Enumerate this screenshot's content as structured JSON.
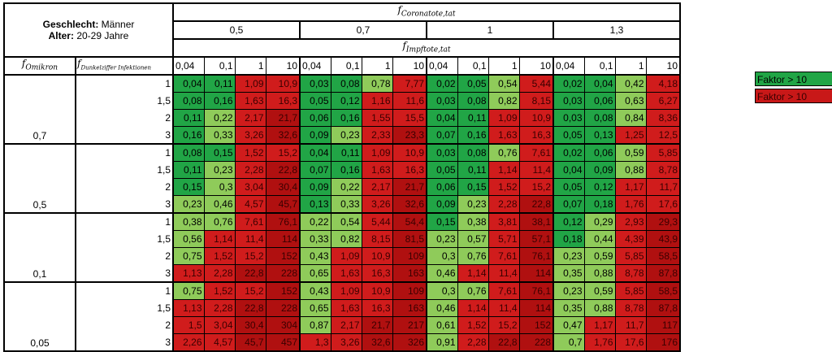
{
  "header": {
    "gender_label": "Geschlecht:",
    "gender_value": "Männer",
    "age_label": "Alter:",
    "age_value": "20-29 Jahre",
    "f_corona_main": "f",
    "f_corona_sub": "Coronatote,tat",
    "f_impf_main": "f",
    "f_impf_sub": "Impftote,tat",
    "f_omikron_main": "f",
    "f_omikron_sub": "Omikron",
    "f_dunkel_main": "f",
    "f_dunkel_sub": "Dunkelziffer Infektionen",
    "corona_values": [
      "0,5",
      "0,7",
      "1",
      "1,3"
    ],
    "impf_values": [
      "0,04",
      "0,1",
      "1",
      "10"
    ]
  },
  "row_groups": [
    {
      "omikron": "0,7",
      "rows": [
        {
          "dunkel": "1",
          "values": [
            "0,04",
            "0,11",
            "1,09",
            "10,9",
            "0,03",
            "0,08",
            "0,78",
            "7,77",
            "0,02",
            "0,05",
            "0,54",
            "5,44",
            "0,02",
            "0,04",
            "0,42",
            "4,18"
          ]
        },
        {
          "dunkel": "1,5",
          "values": [
            "0,08",
            "0,16",
            "1,63",
            "16,3",
            "0,05",
            "0,12",
            "1,16",
            "11,6",
            "0,03",
            "0,08",
            "0,82",
            "8,15",
            "0,03",
            "0,06",
            "0,63",
            "6,27"
          ]
        },
        {
          "dunkel": "2",
          "values": [
            "0,11",
            "0,22",
            "2,17",
            "21,7",
            "0,06",
            "0,16",
            "1,55",
            "15,5",
            "0,04",
            "0,11",
            "1,09",
            "10,9",
            "0,03",
            "0,08",
            "0,84",
            "8,36"
          ]
        },
        {
          "dunkel": "3",
          "values": [
            "0,16",
            "0,33",
            "3,26",
            "32,6",
            "0,09",
            "0,23",
            "2,33",
            "23,3",
            "0,07",
            "0,16",
            "1,63",
            "16,3",
            "0,05",
            "0,13",
            "1,25",
            "12,5"
          ]
        }
      ]
    },
    {
      "omikron": "0,5",
      "rows": [
        {
          "dunkel": "1",
          "values": [
            "0,08",
            "0,15",
            "1,52",
            "15,2",
            "0,04",
            "0,11",
            "1,09",
            "10,9",
            "0,03",
            "0,08",
            "0,76",
            "7,61",
            "0,02",
            "0,06",
            "0,59",
            "5,85"
          ]
        },
        {
          "dunkel": "1,5",
          "values": [
            "0,11",
            "0,23",
            "2,28",
            "22,8",
            "0,07",
            "0,16",
            "1,63",
            "16,3",
            "0,05",
            "0,11",
            "1,14",
            "11,4",
            "0,04",
            "0,09",
            "0,88",
            "8,78"
          ]
        },
        {
          "dunkel": "2",
          "values": [
            "0,15",
            "0,3",
            "3,04",
            "30,4",
            "0,09",
            "0,22",
            "2,17",
            "21,7",
            "0,06",
            "0,15",
            "1,52",
            "15,2",
            "0,05",
            "0,12",
            "1,17",
            "11,7"
          ]
        },
        {
          "dunkel": "3",
          "values": [
            "0,23",
            "0,46",
            "4,57",
            "45,7",
            "0,13",
            "0,33",
            "3,26",
            "32,6",
            "0,09",
            "0,23",
            "2,28",
            "22,8",
            "0,07",
            "0,18",
            "1,76",
            "17,6"
          ]
        }
      ]
    },
    {
      "omikron": "0,1",
      "rows": [
        {
          "dunkel": "1",
          "values": [
            "0,38",
            "0,76",
            "7,61",
            "76,1",
            "0,22",
            "0,54",
            "5,44",
            "54,4",
            "0,15",
            "0,38",
            "3,81",
            "38,1",
            "0,12",
            "0,29",
            "2,93",
            "29,3"
          ]
        },
        {
          "dunkel": "1,5",
          "values": [
            "0,56",
            "1,14",
            "11,4",
            "114",
            "0,33",
            "0,82",
            "8,15",
            "81,5",
            "0,23",
            "0,57",
            "5,71",
            "57,1",
            "0,18",
            "0,44",
            "4,39",
            "43,9"
          ]
        },
        {
          "dunkel": "2",
          "values": [
            "0,75",
            "1,52",
            "15,2",
            "152",
            "0,43",
            "1,09",
            "10,9",
            "109",
            "0,3",
            "0,76",
            "7,61",
            "76,1",
            "0,23",
            "0,59",
            "5,85",
            "58,5"
          ]
        },
        {
          "dunkel": "3",
          "values": [
            "1,13",
            "2,28",
            "22,8",
            "228",
            "0,65",
            "1,63",
            "16,3",
            "163",
            "0,46",
            "1,14",
            "11,4",
            "114",
            "0,35",
            "0,88",
            "8,78",
            "87,8"
          ]
        }
      ]
    },
    {
      "omikron": "0,05",
      "rows": [
        {
          "dunkel": "1",
          "values": [
            "0,75",
            "1,52",
            "15,2",
            "152",
            "0,43",
            "1,09",
            "10,9",
            "109",
            "0,3",
            "0,76",
            "7,61",
            "76,1",
            "0,23",
            "0,59",
            "5,85",
            "58,5"
          ]
        },
        {
          "dunkel": "1,5",
          "values": [
            "1,13",
            "2,28",
            "22,8",
            "228",
            "0,65",
            "1,63",
            "16,3",
            "163",
            "0,46",
            "1,14",
            "11,4",
            "114",
            "0,35",
            "0,88",
            "8,78",
            "87,8"
          ]
        },
        {
          "dunkel": "2",
          "values": [
            "1,5",
            "3,04",
            "30,4",
            "304",
            "0,87",
            "2,17",
            "21,7",
            "217",
            "0,61",
            "1,52",
            "15,2",
            "152",
            "0,47",
            "1,17",
            "11,7",
            "117"
          ]
        },
        {
          "dunkel": "3",
          "values": [
            "2,26",
            "4,57",
            "45,7",
            "457",
            "1,3",
            "3,26",
            "32,6",
            "326",
            "0,91",
            "2,28",
            "22,8",
            "228",
            "0,7",
            "1,76",
            "17,6",
            "176"
          ]
        }
      ]
    }
  ],
  "legend": {
    "green_label": "Faktor > 10",
    "red_label": "Faktor > 10",
    "green_color": "#21a546",
    "red_color": "#c81818"
  }
}
